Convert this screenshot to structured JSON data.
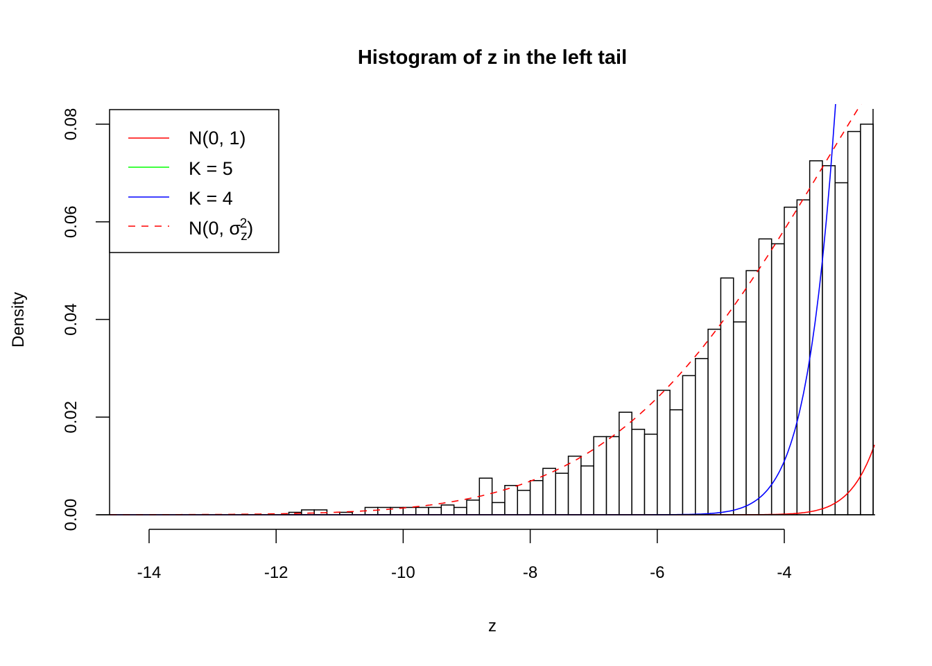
{
  "chart_data": {
    "type": "bar",
    "title": "Histogram of z in the left tail",
    "xlabel": "z",
    "ylabel": "Density",
    "xlim": [
      -14.62,
      -2.57
    ],
    "ylim": [
      0,
      0.083
    ],
    "x_ticks": [
      -14,
      -12,
      -10,
      -8,
      -6,
      -4
    ],
    "x_tick_labels": [
      "-14",
      "-12",
      "-10",
      "-8",
      "-6",
      "-4"
    ],
    "y_ticks": [
      0,
      0.02,
      0.04,
      0.06,
      0.08
    ],
    "y_tick_labels": [
      "0.00",
      "0.02",
      "0.04",
      "0.06",
      "0.08"
    ],
    "grid": false,
    "bin_width": 0.2,
    "bin_starts": [
      -11.8,
      -11.6,
      -11.4,
      -11.2,
      -11.0,
      -10.8,
      -10.6,
      -10.4,
      -10.2,
      -10.0,
      -9.8,
      -9.6,
      -9.4,
      -9.2,
      -9.0,
      -8.8,
      -8.6,
      -8.4,
      -8.2,
      -8.0,
      -7.8,
      -7.6,
      -7.4,
      -7.2,
      -7.0,
      -6.8,
      -6.6,
      -6.4,
      -6.2,
      -6.0,
      -5.8,
      -5.6,
      -5.4,
      -5.2,
      -5.0,
      -4.8,
      -4.6,
      -4.4,
      -4.2,
      -4.0,
      -3.8,
      -3.6,
      -3.4,
      -3.2,
      -3.0,
      -2.8
    ],
    "values": [
      0.0005,
      0.001,
      0.001,
      0,
      0.0005,
      0,
      0.0015,
      0.0015,
      0.0015,
      0.0015,
      0.0015,
      0.0015,
      0.002,
      0.0015,
      0.003,
      0.0075,
      0.0025,
      0.006,
      0.005,
      0.007,
      0.0095,
      0.0085,
      0.012,
      0.01,
      0.016,
      0.016,
      0.021,
      0.0175,
      0.0165,
      0.0255,
      0.0215,
      0.0285,
      0.032,
      0.038,
      0.0485,
      0.0395,
      0.05,
      0.0565,
      0.0555,
      0.063,
      0.0645,
      0.0725,
      0.0715,
      0.068,
      0.0785,
      0.08
    ],
    "curves": [
      {
        "name": "N(0, 1)",
        "color": "#ff0000",
        "dash": false,
        "mean": 0,
        "sd": 1,
        "scale": 1
      },
      {
        "name": "K = 5",
        "color": "#00ff00",
        "dash": false,
        "mean": null,
        "sd": null,
        "scale": null
      },
      {
        "name": "K = 4",
        "color": "#0000ff",
        "dash": false,
        "mean": 0,
        "sd": 1.194,
        "scale": 9
      },
      {
        "name": "N(0, σz²)",
        "color": "#ff0000",
        "dash": true,
        "mean": 0,
        "sd": 3.35,
        "scale": 1
      }
    ],
    "legend": {
      "placement": "top-left",
      "entries": [
        {
          "label": "N(0, 1)",
          "color": "#ff0000",
          "dash": false
        },
        {
          "label": "K = 5",
          "color": "#00ff00",
          "dash": false
        },
        {
          "label": "K = 4",
          "color": "#0000ff",
          "dash": false
        },
        {
          "label_base": "N(0, σ",
          "label_sub": "z",
          "label_sup": "2",
          "label_close": ")",
          "color": "#ff0000",
          "dash": true
        }
      ]
    }
  }
}
